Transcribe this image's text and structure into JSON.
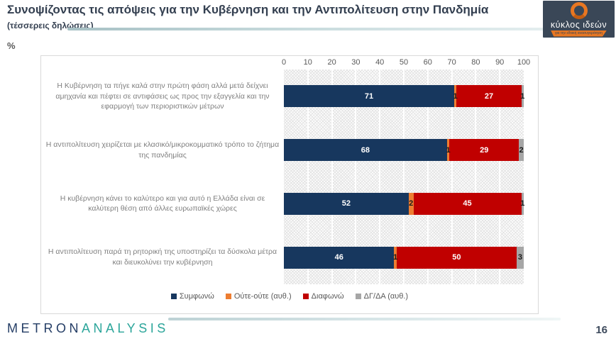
{
  "slide": {
    "title": "Συνοψίζοντας τις απόψεις για την Κυβέρνηση και την Αντιπολίτευση στην Πανδημία",
    "subtitle": "(τέσσερεις δηλώσεις)",
    "unit_label": "%",
    "page_number": "16"
  },
  "logo": {
    "name": "κύκλος ιδεών",
    "tagline": "για την εθνική ανασυγκρότηση"
  },
  "footer": {
    "brand_part1": "METRON",
    "brand_part2": "ANALYSIS"
  },
  "colors": {
    "title_navy": "#333F50",
    "label_gray": "#7F7F7F",
    "axis_gray": "#595959",
    "logo_navy": "#3A4757",
    "logo_orange": "#E87722",
    "brand_navy": "#253E66",
    "brand_teal": "#2BA59A"
  },
  "chart_data": {
    "type": "bar",
    "orientation": "horizontal",
    "stacked": true,
    "title": "Συνοψίζοντας τις απόψεις για την Κυβέρνηση και την Αντιπολίτευση στην Πανδημία (τέσσερεις δηλώσεις)",
    "xlabel": "%",
    "ylabel": "",
    "axis": {
      "min": 0,
      "max": 100,
      "step": 10,
      "position": "top"
    },
    "grid": true,
    "legend_position": "bottom",
    "plot_background": "diagonal-hatch",
    "categories": [
      "Η Κυβέρνηση τα πήγε καλά στην πρώτη φάση αλλά μετά δείχνει αμηχανία και πέφτει σε αντιφάσεις  ως προς την εξαγγελία και την εφαρμογή των περιοριστικών μέτρων",
      "Η αντιπολίτευση χειρίζεται με  κλασικό/μικροκομματικό τρόπο το ζήτημα της πανδημίας",
      "Η κυβέρνηση κάνει το καλύτερο  και για αυτό η Ελλάδα είναι σε καλύτερη θέση από άλλες ευρωπαϊκές χώρες",
      "Η αντιπολίτευση παρά τη ρητορική της υποστηρίζει τα δύσκολα μέτρα και διευκολύνει την κυβέρνηση"
    ],
    "series": [
      {
        "name": "Συμφωνώ",
        "color": "#17375E",
        "label_color": "#FFFFFF",
        "values": [
          71,
          68,
          52,
          46
        ]
      },
      {
        "name": "Ούτε-ούτε (αυθ.)",
        "color": "#ED7D31",
        "label_color": "#1A1A1A",
        "values": [
          1,
          1,
          2,
          1
        ]
      },
      {
        "name": "Διαφωνώ",
        "color": "#C00000",
        "label_color": "#FFFFFF",
        "values": [
          27,
          29,
          45,
          50
        ]
      },
      {
        "name": "ΔΓ/ΔΑ (αυθ.)",
        "color": "#A6A6A6",
        "label_color": "#1A1A1A",
        "values": [
          1,
          2,
          1,
          3
        ]
      }
    ]
  }
}
